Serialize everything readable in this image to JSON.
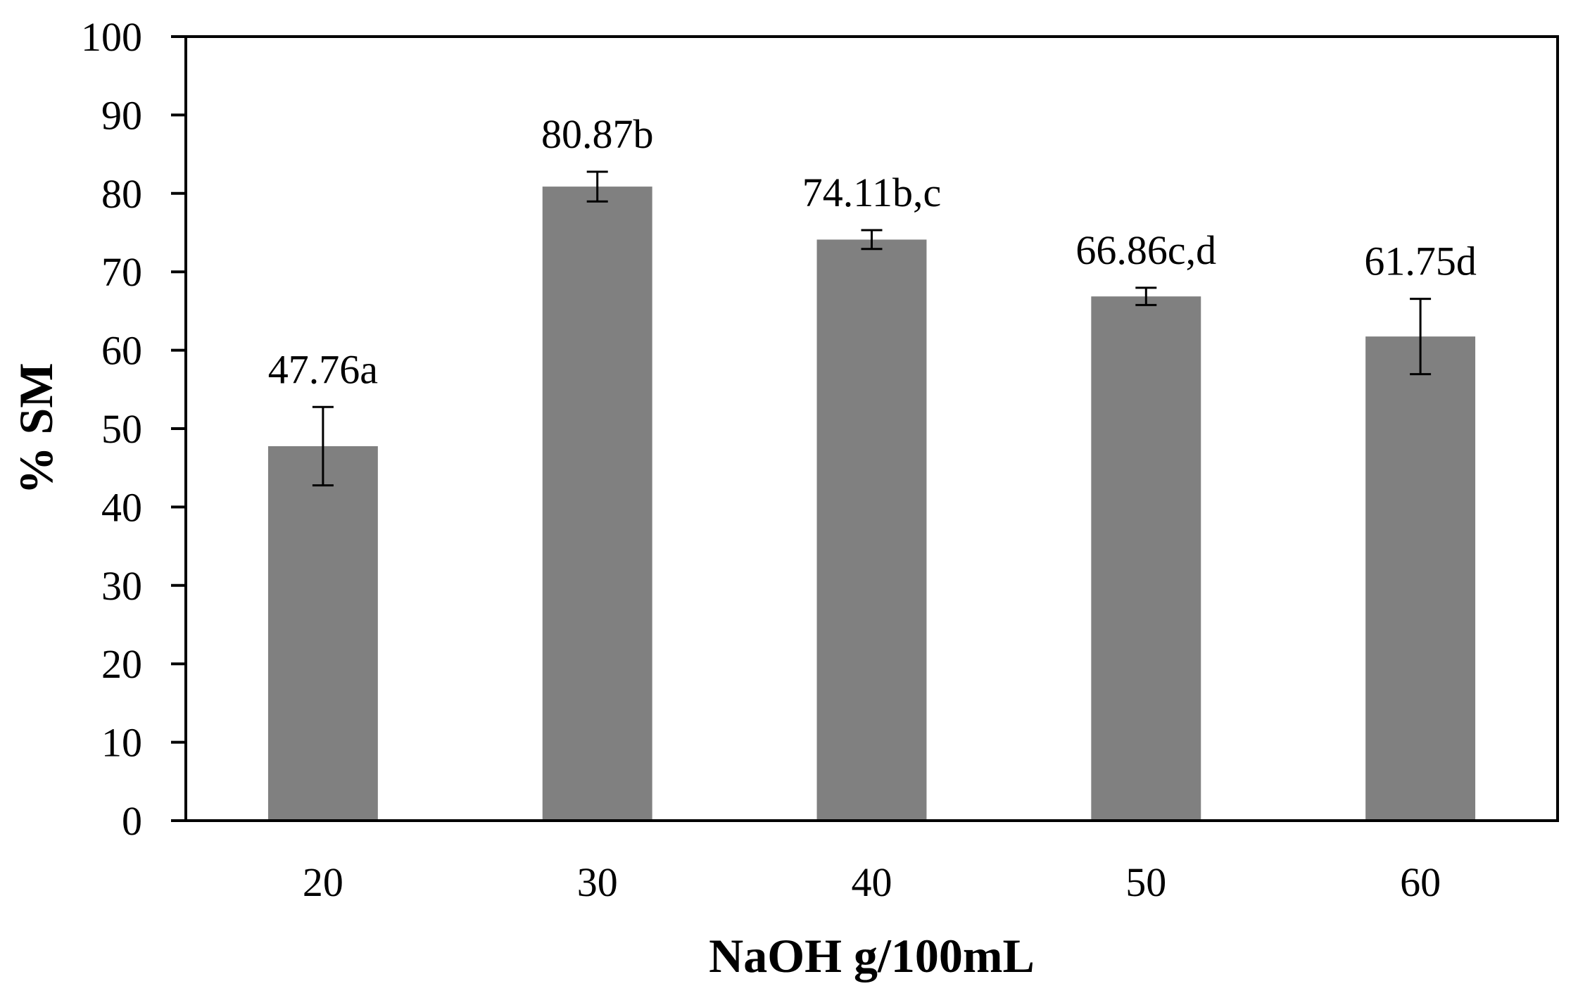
{
  "chart_data": {
    "type": "bar",
    "title": "",
    "xlabel": "NaOH g/100mL",
    "ylabel": "% SM",
    "categories": [
      "20",
      "30",
      "40",
      "50",
      "60"
    ],
    "values": [
      47.76,
      80.87,
      74.11,
      66.86,
      61.75
    ],
    "errors": [
      5.0,
      1.9,
      1.2,
      1.1,
      4.8
    ],
    "data_labels": [
      "47.76a",
      "80.87b",
      "74.11b,c",
      "66.86c,d",
      "61.75d"
    ],
    "ylim": [
      0,
      100
    ],
    "yticks": [
      0,
      10,
      20,
      30,
      40,
      50,
      60,
      70,
      80,
      90,
      100
    ],
    "grid": false,
    "legend": null,
    "bar_color": "#808080",
    "axis_color": "#000000"
  }
}
